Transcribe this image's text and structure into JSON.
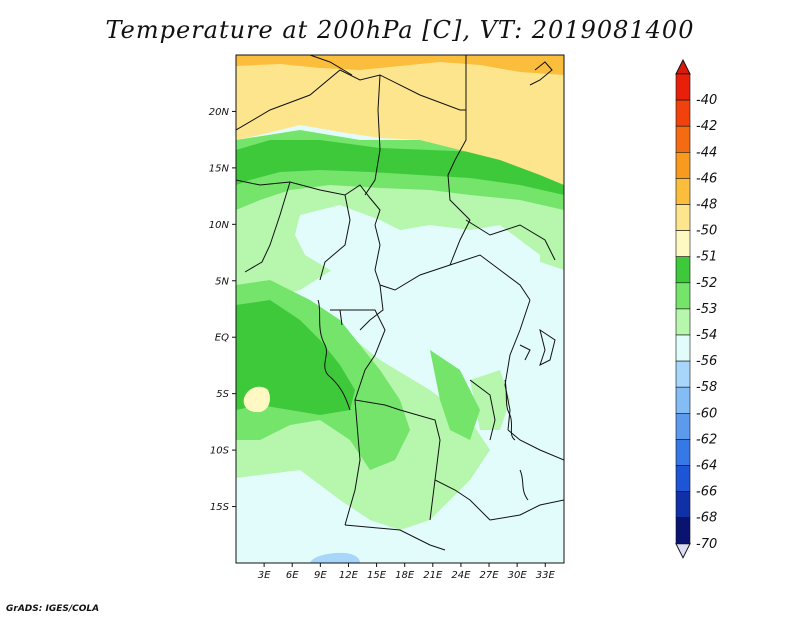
{
  "title": "Temperature at 200hPa [C], VT: 2019081400",
  "credit": "GrADS: IGES/COLA",
  "map": {
    "lon_range": [
      0,
      35
    ],
    "lat_range": [
      -20,
      25
    ],
    "lat_ticks": [
      {
        "value": 20,
        "label": "20N"
      },
      {
        "value": 15,
        "label": "15N"
      },
      {
        "value": 10,
        "label": "10N"
      },
      {
        "value": 5,
        "label": "5N"
      },
      {
        "value": 0,
        "label": "EQ"
      },
      {
        "value": -5,
        "label": "5S"
      },
      {
        "value": -10,
        "label": "10S"
      },
      {
        "value": -15,
        "label": "15S"
      }
    ],
    "lon_ticks": [
      {
        "value": 3,
        "label": "3E"
      },
      {
        "value": 6,
        "label": "6E"
      },
      {
        "value": 9,
        "label": "9E"
      },
      {
        "value": 12,
        "label": "12E"
      },
      {
        "value": 15,
        "label": "15E"
      },
      {
        "value": 18,
        "label": "18E"
      },
      {
        "value": 21,
        "label": "21E"
      },
      {
        "value": 24,
        "label": "24E"
      },
      {
        "value": 27,
        "label": "27E"
      },
      {
        "value": 30,
        "label": "30E"
      },
      {
        "value": 33,
        "label": "33E"
      }
    ]
  },
  "colorbar": {
    "levels": [
      {
        "label": "-40",
        "color": "#e8200a"
      },
      {
        "label": "-42",
        "color": "#f1420e"
      },
      {
        "label": "-44",
        "color": "#f56b12"
      },
      {
        "label": "-46",
        "color": "#f89a1e"
      },
      {
        "label": "-48",
        "color": "#fbbd3c"
      },
      {
        "label": "-50",
        "color": "#fde58e"
      },
      {
        "label": "-51",
        "color": "#fef9c2"
      },
      {
        "label": "-52",
        "color": "#3ec93b"
      },
      {
        "label": "-53",
        "color": "#74e46b"
      },
      {
        "label": "-54",
        "color": "#b6f6ad"
      },
      {
        "label": "-56",
        "color": "#e2fcfc"
      },
      {
        "label": "-58",
        "color": "#a8d6fa"
      },
      {
        "label": "-60",
        "color": "#84bcf6"
      },
      {
        "label": "-62",
        "color": "#5c9aee"
      },
      {
        "label": "-64",
        "color": "#3578e6"
      },
      {
        "label": "-66",
        "color": "#1d55d6"
      },
      {
        "label": "-68",
        "color": "#1030a8"
      },
      {
        "label": "-70",
        "color": "#0a1470"
      }
    ],
    "top_cap_color": "#d9190a",
    "bottom_cap_color": "#dcdcf4"
  }
}
